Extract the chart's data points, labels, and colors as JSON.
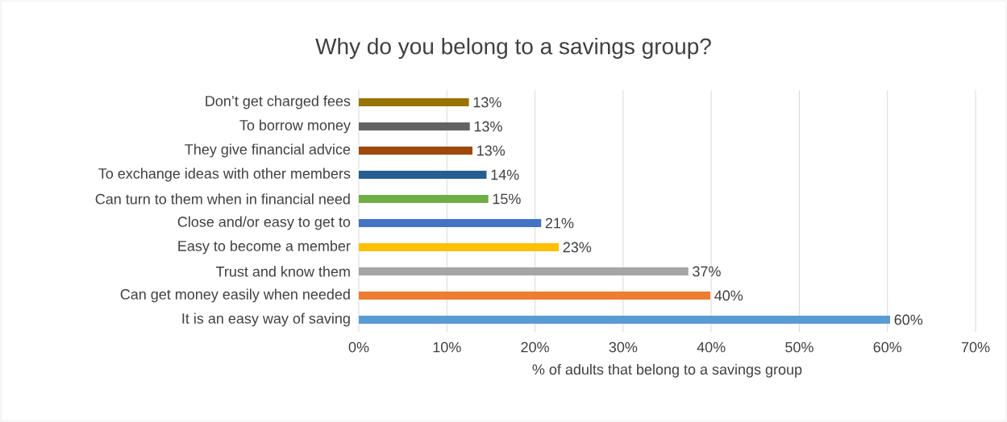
{
  "chart_data": {
    "type": "bar",
    "orientation": "horizontal",
    "title": "Why do you belong to a savings group?",
    "xlabel": "% of adults that belong to a savings group",
    "categories": [
      "Don’t get charged fees",
      "To borrow money",
      "They give financial advice",
      "To exchange ideas with other members",
      "Can turn to them when in financial need",
      "Close and/or easy to get to",
      "Easy to become a member",
      "Trust and know them",
      "Can get money easily when needed",
      "It is an easy way of saving"
    ],
    "values": [
      12.5,
      12.6,
      12.9,
      14.5,
      14.7,
      20.7,
      22.7,
      37.4,
      39.9,
      60.3
    ],
    "colors": [
      "#997300",
      "#636363",
      "#9e480e",
      "#255e91",
      "#70ad47",
      "#4472c4",
      "#ffc000",
      "#a5a5a5",
      "#ed7d31",
      "#5b9bd5"
    ],
    "value_labels": [
      "13%",
      "13%",
      "13%",
      "14%",
      "15%",
      "21%",
      "23%",
      "37%",
      "40%",
      "60%"
    ],
    "xlim": [
      0,
      70
    ],
    "xticks": [
      {
        "value": 0,
        "label": "0%"
      },
      {
        "value": 10,
        "label": "10%"
      },
      {
        "value": 20,
        "label": "20%"
      },
      {
        "value": 30,
        "label": "30%"
      },
      {
        "value": 40,
        "label": "40%"
      },
      {
        "value": 50,
        "label": "50%"
      },
      {
        "value": 60,
        "label": "60%"
      },
      {
        "value": 70,
        "label": "70%"
      }
    ],
    "grid": "x"
  }
}
